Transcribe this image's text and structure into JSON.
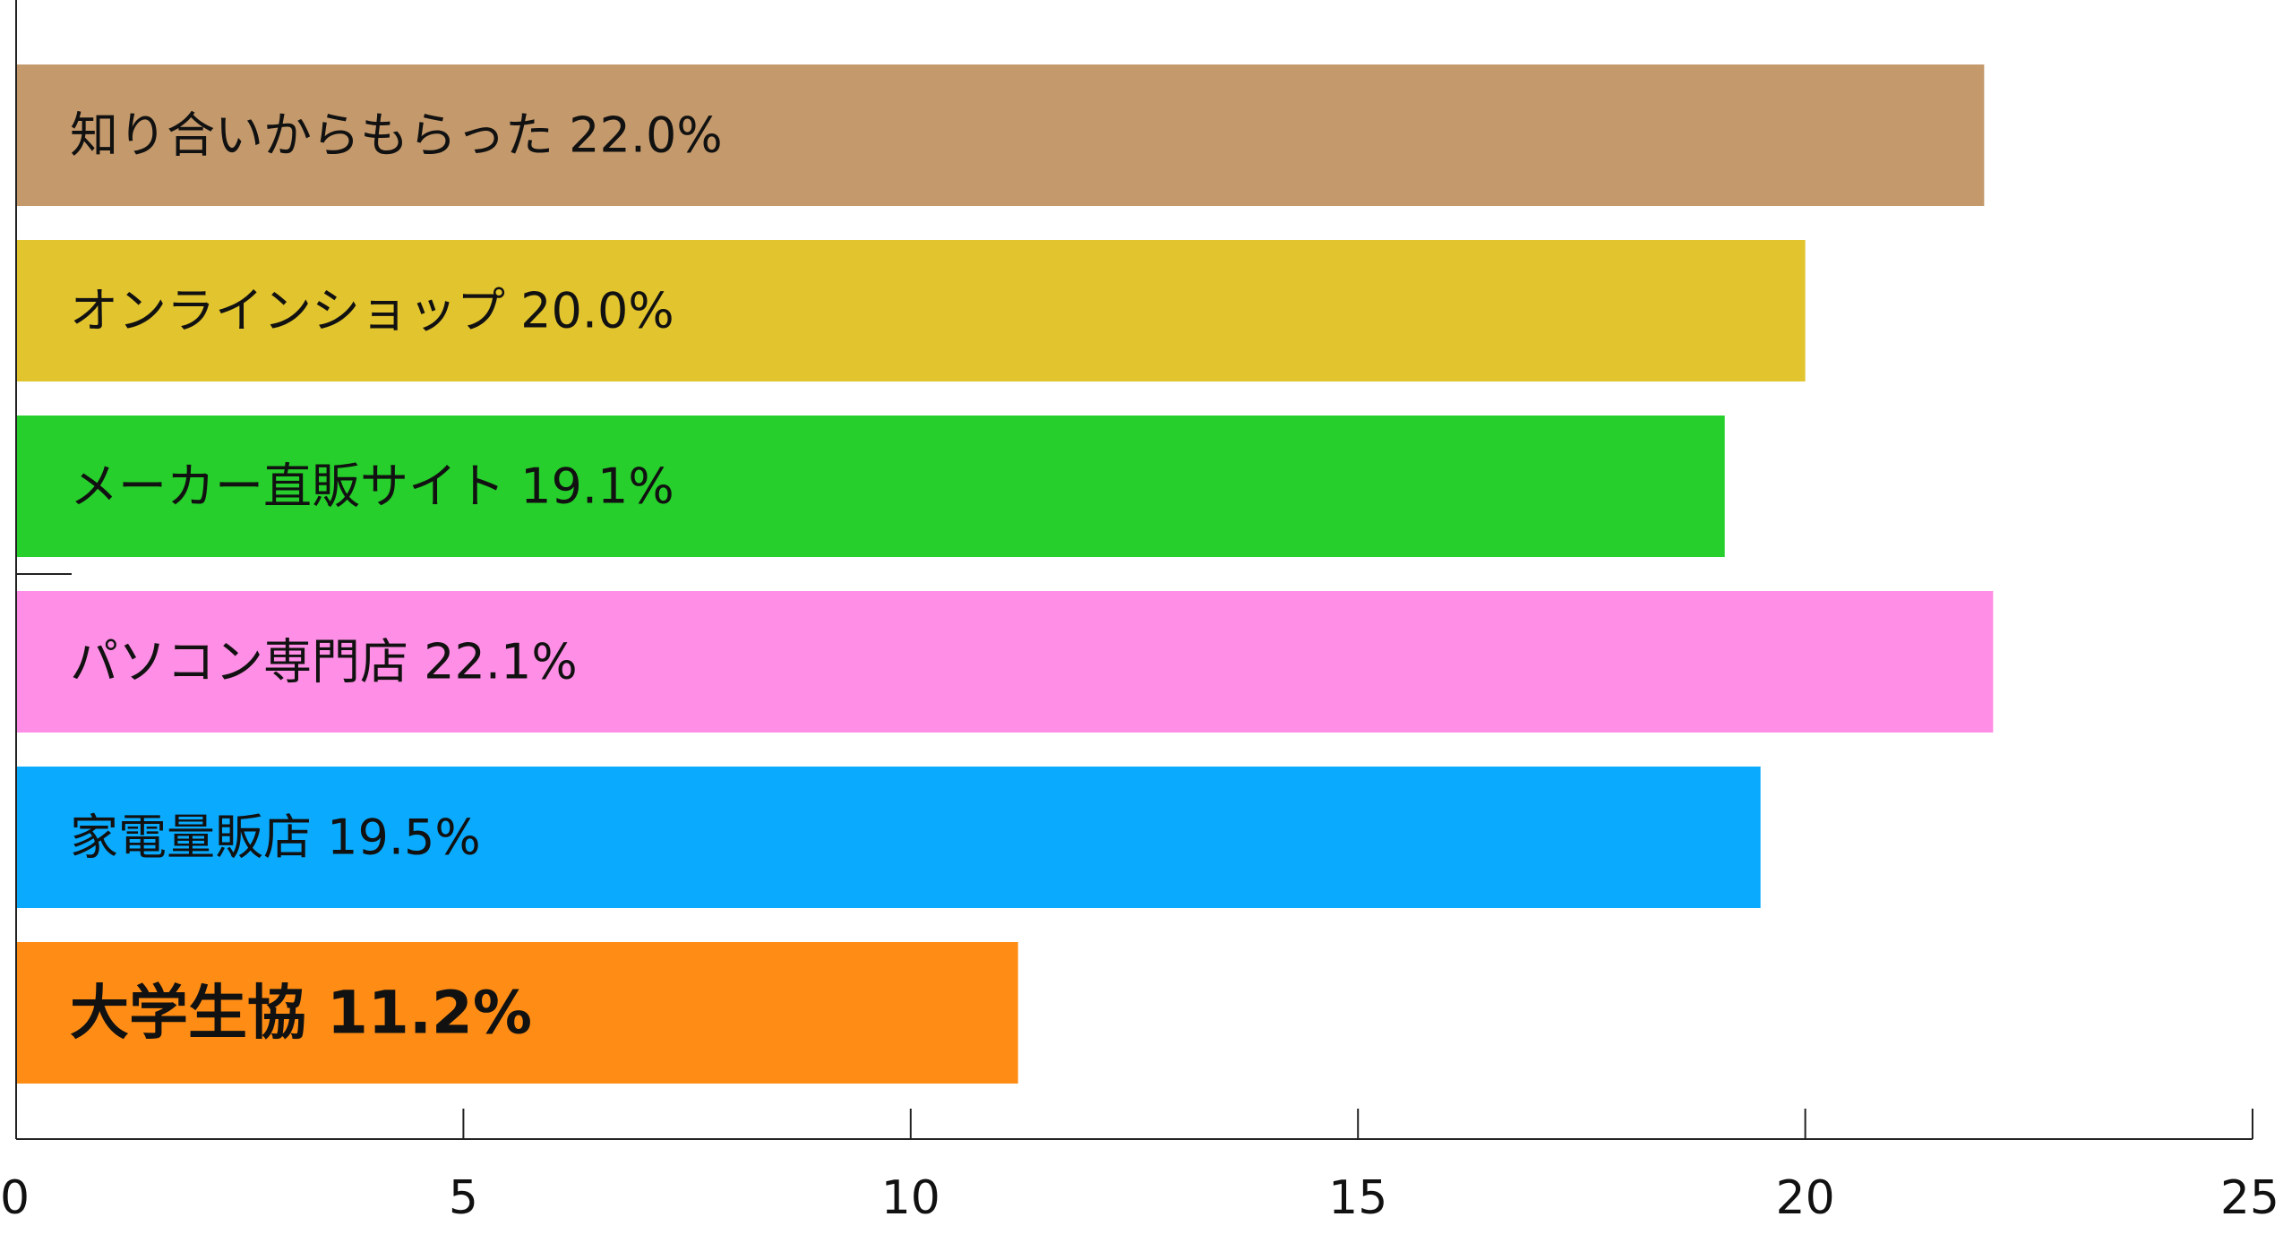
{
  "chart_data": {
    "type": "bar",
    "orientation": "horizontal",
    "categories": [
      "知り合いからもらった",
      "オンラインショップ",
      "メーカー直販サイト",
      "パソコン専門店",
      "家電量販店",
      "大学生協"
    ],
    "values": [
      22.0,
      20.0,
      19.1,
      22.1,
      19.5,
      11.2
    ],
    "data_labels": [
      "知り合いからもらった 22.0%",
      "オンラインショップ 20.0%",
      "メーカー直販サイト 19.1%",
      "パソコン専門店 22.1%",
      "家電量販店 19.5%",
      "大学生協 11.2%"
    ],
    "colors": [
      "#c49a6c",
      "#e2c42e",
      "#26cf2b",
      "#ff8fe6",
      "#0aabff",
      "#ff8d15"
    ],
    "label_colors": [
      "#111111",
      "#111111",
      "#111111",
      "#111111",
      "#111111",
      "#ffffff"
    ],
    "title": "",
    "xlabel": "",
    "ylabel": "",
    "xlim": [
      0,
      25
    ],
    "xticks": [
      0,
      5,
      10,
      15,
      20,
      25
    ],
    "xtick_labels": [
      "0",
      "5",
      "10",
      "15",
      "20",
      "25"
    ],
    "grid": false,
    "legend": "none"
  }
}
